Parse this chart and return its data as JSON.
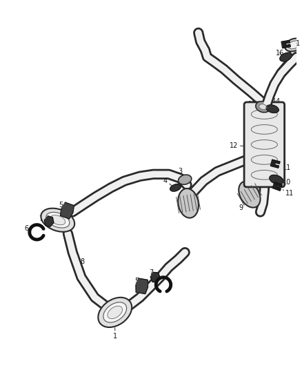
{
  "background_color": "#ffffff",
  "fig_width": 4.38,
  "fig_height": 5.33,
  "dpi": 100,
  "pipe_outer_color": "#2a2a2a",
  "pipe_inner_color": "#ffffff",
  "component_fill": "#d8d8d8",
  "component_edge": "#2a2a2a",
  "label_color": "#111111",
  "label_fontsize": 7.0,
  "leader_color": "#444444"
}
